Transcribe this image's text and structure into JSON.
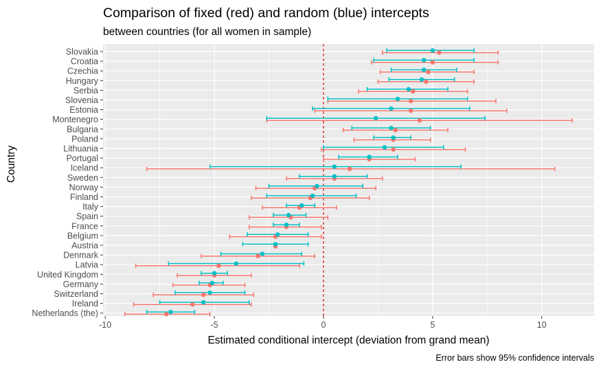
{
  "chart_data": {
    "type": "errorbar",
    "title": "Comparison of fixed (red) and random (blue) intercepts",
    "subtitle": "between countries (for all women in sample)",
    "caption": "Error bars show 95% confidence intervals",
    "xlabel": "Estimated conditional intercept (deviation from grand mean)",
    "ylabel": "Country",
    "xlim": [
      -10.1,
      12.4
    ],
    "x_ticks": [
      -10,
      -5,
      0,
      5,
      10
    ],
    "x_tick_labels": [
      "-10",
      "-5",
      "0",
      "5",
      "10"
    ],
    "reference_line": {
      "x": 0,
      "style": "dashed",
      "color": "#CC0000"
    },
    "grid": true,
    "colors": {
      "fixed": "#F8766D",
      "random": "#00BFC4",
      "panel": "#EBEBEB",
      "grid": "#FFFFFF"
    },
    "categories": [
      "Slovakia",
      "Croatia",
      "Czechia",
      "Hungary",
      "Serbia",
      "Slovenia",
      "Estonia",
      "Montenegro",
      "Bulgaria",
      "Poland",
      "Lithuania",
      "Portugal",
      "Iceland",
      "Sweden",
      "Norway",
      "Finland",
      "Italy",
      "Spain",
      "France",
      "Belgium",
      "Austria",
      "Denmark",
      "Latvia",
      "United Kingdom",
      "Germany",
      "Switzerland",
      "Ireland",
      "Netherlands (the)"
    ],
    "series": [
      {
        "key": "fixed",
        "color": "#F8766D",
        "estimate": [
          5.3,
          5.0,
          4.8,
          4.7,
          4.1,
          4.0,
          4.0,
          4.4,
          3.3,
          3.2,
          3.2,
          2.1,
          1.2,
          0.5,
          -0.4,
          -0.6,
          -1.1,
          -1.5,
          -1.7,
          -2.2,
          -2.2,
          -3.0,
          -4.8,
          -5.0,
          -5.2,
          -5.5,
          -6.0,
          -7.2
        ],
        "lower": [
          2.7,
          2.2,
          2.6,
          2.5,
          1.6,
          0.2,
          -0.4,
          -2.6,
          0.9,
          1.4,
          -0.1,
          0.0,
          -8.1,
          -1.7,
          -3.1,
          -3.3,
          -2.8,
          -3.4,
          -3.4,
          -4.3,
          -2.2,
          -5.6,
          -8.6,
          -6.7,
          -6.9,
          -7.8,
          -8.7,
          -9.1
        ],
        "upper": [
          8.0,
          8.0,
          6.9,
          6.9,
          6.6,
          7.9,
          8.4,
          11.4,
          5.7,
          4.9,
          6.5,
          4.2,
          10.6,
          2.7,
          2.4,
          2.1,
          0.6,
          0.2,
          -0.1,
          -0.1,
          -2.2,
          -0.4,
          -1.1,
          -3.3,
          -3.6,
          -3.2,
          -3.3,
          -5.2
        ]
      },
      {
        "key": "random",
        "color": "#00BFC4",
        "estimate": [
          5.0,
          4.6,
          4.6,
          4.5,
          3.9,
          3.4,
          3.1,
          2.4,
          3.1,
          3.2,
          2.8,
          2.1,
          0.5,
          0.5,
          -0.3,
          -0.5,
          -1.0,
          -1.6,
          -1.7,
          -2.1,
          -2.2,
          -2.8,
          -4.0,
          -5.0,
          -5.1,
          -5.2,
          -5.5,
          -7.0
        ],
        "lower": [
          2.9,
          2.3,
          3.1,
          3.0,
          2.0,
          0.2,
          -0.5,
          -2.6,
          1.3,
          2.3,
          0.0,
          0.7,
          -5.2,
          -1.1,
          -2.5,
          -2.6,
          -1.7,
          -2.3,
          -2.3,
          -3.5,
          -3.7,
          -4.7,
          -7.1,
          -5.6,
          -5.7,
          -6.8,
          -7.5,
          -8.1
        ],
        "upper": [
          6.9,
          6.9,
          6.1,
          6.0,
          5.7,
          6.6,
          6.7,
          7.4,
          4.9,
          4.0,
          5.5,
          3.4,
          6.3,
          2.0,
          1.8,
          1.5,
          -0.4,
          -0.8,
          -1.1,
          -0.7,
          -0.7,
          -1.0,
          -0.9,
          -4.4,
          -4.6,
          -3.6,
          -3.4,
          -5.9
        ]
      }
    ]
  }
}
